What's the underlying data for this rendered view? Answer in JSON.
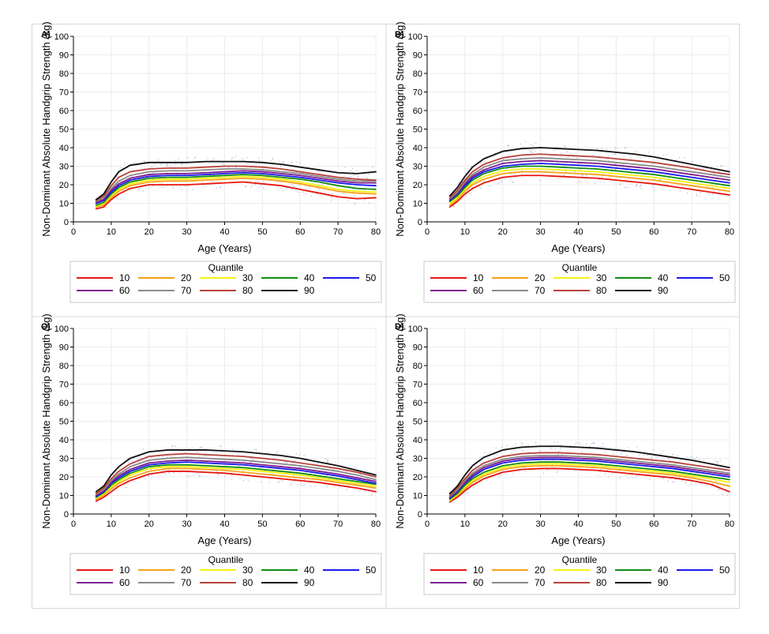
{
  "legend": {
    "title": "Quantile",
    "items": [
      {
        "label": "10",
        "color": "#e8150f"
      },
      {
        "label": "20",
        "color": "#f7a21b"
      },
      {
        "label": "30",
        "color": "#f3f20f"
      },
      {
        "label": "40",
        "color": "#118c11"
      },
      {
        "label": "50",
        "color": "#1a1aee"
      },
      {
        "label": "60",
        "color": "#7f1a8f"
      },
      {
        "label": "70",
        "color": "#8a8a8a"
      },
      {
        "label": "80",
        "color": "#b8433a"
      },
      {
        "label": "90",
        "color": "#111111"
      }
    ]
  },
  "chart_data": [
    {
      "panel": "A)",
      "type": "line",
      "xlabel": "Age (Years)",
      "ylabel": "Non-Dominant Absolute Handgrip Strength (kg)",
      "xlim": [
        0,
        80
      ],
      "ylim": [
        0,
        100
      ],
      "xticks": [
        0,
        10,
        20,
        30,
        40,
        50,
        60,
        70,
        80
      ],
      "yticks": [
        0,
        10,
        20,
        30,
        40,
        50,
        60,
        70,
        80,
        90,
        100
      ],
      "grid": true,
      "x": [
        6,
        8,
        10,
        12,
        15,
        20,
        25,
        30,
        35,
        40,
        45,
        50,
        55,
        60,
        65,
        70,
        75,
        80
      ],
      "series": [
        {
          "name": "10",
          "values": [
            7,
            8,
            12,
            15,
            18,
            20,
            20,
            20,
            20.5,
            21,
            21.5,
            20.5,
            19.5,
            17.5,
            15.5,
            13.5,
            12.5,
            13
          ]
        },
        {
          "name": "20",
          "values": [
            8,
            9,
            13,
            16.5,
            19.5,
            21.5,
            22,
            22,
            22.5,
            23,
            23.5,
            23,
            22,
            20.5,
            18.5,
            16.5,
            15.5,
            15
          ]
        },
        {
          "name": "30",
          "values": [
            8.5,
            10,
            14,
            17.5,
            20.5,
            22.5,
            23,
            23,
            23.5,
            24,
            24.5,
            24,
            23,
            21.5,
            19.5,
            17.5,
            16.5,
            16
          ]
        },
        {
          "name": "40",
          "values": [
            9,
            10.5,
            15,
            18.5,
            21.5,
            23.5,
            24,
            24,
            24.5,
            25,
            25.5,
            25,
            24,
            23,
            21.5,
            19.5,
            18,
            17.5
          ]
        },
        {
          "name": "50",
          "values": [
            10,
            11.5,
            16,
            19.5,
            22.5,
            24.5,
            25,
            25,
            25.5,
            26,
            26.5,
            26,
            25,
            24,
            22.5,
            21,
            20,
            19.5
          ]
        },
        {
          "name": "60",
          "values": [
            10.5,
            12,
            17,
            20.5,
            23.5,
            25.5,
            26,
            26,
            26.5,
            27,
            27.5,
            27,
            26,
            25,
            23.5,
            22,
            21,
            21
          ]
        },
        {
          "name": "70",
          "values": [
            11,
            13,
            18,
            22,
            25,
            27,
            27.5,
            27.5,
            28,
            28.5,
            28.5,
            28,
            27,
            26,
            24.5,
            23,
            22,
            22
          ]
        },
        {
          "name": "80",
          "values": [
            11.5,
            14,
            19.5,
            24,
            27,
            28.5,
            29,
            29,
            29.5,
            30,
            30,
            29.5,
            28.5,
            27,
            25.5,
            24,
            23,
            22.5
          ]
        },
        {
          "name": "90",
          "values": [
            12,
            15,
            21.5,
            27,
            30.5,
            32,
            32,
            32,
            32.5,
            32.5,
            32.5,
            32,
            31,
            29.5,
            28,
            26.5,
            26,
            27
          ]
        }
      ]
    },
    {
      "panel": "B)",
      "type": "line",
      "xlabel": "Age (Years)",
      "ylabel": "Non-Dominant Absolute Handgrip Strength (kg)",
      "xlim": [
        0,
        80
      ],
      "ylim": [
        0,
        100
      ],
      "xticks": [
        0,
        10,
        20,
        30,
        40,
        50,
        60,
        70,
        80
      ],
      "yticks": [
        0,
        10,
        20,
        30,
        40,
        50,
        60,
        70,
        80,
        90,
        100
      ],
      "grid": true,
      "x": [
        6,
        8,
        10,
        12,
        15,
        20,
        25,
        30,
        35,
        40,
        45,
        50,
        55,
        60,
        65,
        70,
        75,
        80
      ],
      "series": [
        {
          "name": "10",
          "values": [
            8,
            11,
            15,
            18,
            21,
            24,
            25,
            25,
            24.5,
            24,
            23.5,
            22.5,
            21.5,
            20.5,
            19,
            17.5,
            16,
            14.5
          ]
        },
        {
          "name": "20",
          "values": [
            9,
            12,
            16.5,
            20,
            23,
            26,
            27,
            27,
            26.5,
            26,
            25.5,
            24.5,
            23.5,
            22.5,
            21,
            19.5,
            18,
            16.5
          ]
        },
        {
          "name": "30",
          "values": [
            10,
            13,
            17.5,
            21,
            24.5,
            27.5,
            28.5,
            28.5,
            28,
            27.5,
            27,
            26,
            25,
            24,
            22.5,
            21,
            19.5,
            18
          ]
        },
        {
          "name": "40",
          "values": [
            11,
            14,
            18.5,
            22.5,
            26,
            29,
            30,
            30,
            29.5,
            29,
            28.5,
            27.5,
            26.5,
            25.5,
            24,
            22.5,
            21,
            19.5
          ]
        },
        {
          "name": "50",
          "values": [
            11.5,
            15,
            19.5,
            23.5,
            27,
            30,
            31,
            31.5,
            31,
            30.5,
            30,
            29,
            28,
            27,
            25.5,
            24,
            22.5,
            21
          ]
        },
        {
          "name": "60",
          "values": [
            12,
            15.5,
            20.5,
            24.5,
            28,
            31.5,
            32.5,
            33,
            32.5,
            32,
            31.5,
            30.5,
            29.5,
            28.5,
            27,
            25.5,
            24,
            22.5
          ]
        },
        {
          "name": "70",
          "values": [
            12.5,
            16,
            21.5,
            25.5,
            29.5,
            33,
            34,
            34.5,
            34,
            33.5,
            33,
            32,
            31,
            30,
            28.5,
            27,
            25.5,
            24
          ]
        },
        {
          "name": "80",
          "values": [
            13,
            17,
            22.5,
            27,
            31,
            34.5,
            36,
            36.5,
            36,
            35.5,
            35,
            34,
            33,
            32,
            30.5,
            29,
            27,
            25.5
          ]
        },
        {
          "name": "90",
          "values": [
            14,
            18.5,
            24.5,
            29.5,
            34,
            38,
            39.5,
            40,
            39.5,
            39,
            38.5,
            37.5,
            36.5,
            35,
            33,
            31,
            29,
            27
          ]
        }
      ]
    },
    {
      "panel": "C)",
      "type": "line",
      "xlabel": "Age (Years)",
      "ylabel": "Non-Dominant Absolute Handgrip Strength (kg)",
      "xlim": [
        0,
        80
      ],
      "ylim": [
        0,
        100
      ],
      "xticks": [
        0,
        10,
        20,
        30,
        40,
        50,
        60,
        70,
        80
      ],
      "yticks": [
        0,
        10,
        20,
        30,
        40,
        50,
        60,
        70,
        80,
        90,
        100
      ],
      "grid": true,
      "x": [
        6,
        8,
        10,
        12,
        15,
        20,
        25,
        30,
        35,
        40,
        45,
        50,
        55,
        60,
        65,
        70,
        75,
        80
      ],
      "series": [
        {
          "name": "10",
          "values": [
            7,
            9,
            12,
            15,
            18,
            21.5,
            23,
            23,
            22.5,
            22,
            21,
            20,
            19,
            18,
            17,
            15.5,
            14,
            12
          ]
        },
        {
          "name": "20",
          "values": [
            8,
            10,
            13.5,
            16.5,
            19.5,
            23,
            24.5,
            24.5,
            24,
            23.5,
            22.5,
            21.5,
            20.5,
            19.5,
            18.5,
            17,
            15.5,
            14
          ]
        },
        {
          "name": "30",
          "values": [
            8.5,
            11,
            14.5,
            17.5,
            21,
            24.5,
            25.5,
            25.5,
            25,
            24.5,
            24,
            23,
            22,
            21,
            19.5,
            18,
            16.5,
            15
          ]
        },
        {
          "name": "40",
          "values": [
            9,
            11.5,
            15.5,
            18.5,
            22,
            25.5,
            26.5,
            26.5,
            26,
            25.5,
            25,
            24,
            23,
            22,
            20.5,
            19,
            17.5,
            16
          ]
        },
        {
          "name": "50",
          "values": [
            9.5,
            12,
            16.5,
            19.5,
            23,
            26.5,
            27.5,
            28,
            27.5,
            27,
            26.5,
            25.5,
            24.5,
            23.5,
            22,
            20.5,
            18.5,
            16.5
          ]
        },
        {
          "name": "60",
          "values": [
            10,
            12.5,
            17,
            20.5,
            24,
            27.5,
            28.5,
            29,
            28.5,
            28,
            27.5,
            26.5,
            25.5,
            24.5,
            23,
            21.5,
            19.5,
            17.5
          ]
        },
        {
          "name": "70",
          "values": [
            10.5,
            13,
            18,
            21.5,
            25.5,
            29,
            30,
            30.5,
            30,
            29.5,
            29,
            28,
            27,
            26,
            24.5,
            23,
            21,
            18.5
          ]
        },
        {
          "name": "80",
          "values": [
            11,
            14,
            19,
            23,
            27,
            31,
            32,
            32.5,
            32,
            31.5,
            31,
            30,
            29,
            27.5,
            26,
            24.5,
            22.5,
            20
          ]
        },
        {
          "name": "90",
          "values": [
            12,
            15,
            21,
            25.5,
            30,
            33.5,
            34.5,
            34.5,
            34.5,
            34,
            33.5,
            32.5,
            31.5,
            30,
            28,
            26,
            23.5,
            21
          ]
        }
      ]
    },
    {
      "panel": "D)",
      "type": "line",
      "xlabel": "Age (Years)",
      "ylabel": "Non-Dominant Absolute Handgrip Strength (kg)",
      "xlim": [
        0,
        80
      ],
      "ylim": [
        0,
        100
      ],
      "xticks": [
        0,
        10,
        20,
        30,
        40,
        50,
        60,
        70,
        80
      ],
      "yticks": [
        0,
        10,
        20,
        30,
        40,
        50,
        60,
        70,
        80,
        90,
        100
      ],
      "grid": true,
      "x": [
        6,
        8,
        10,
        12,
        15,
        20,
        25,
        30,
        35,
        40,
        45,
        50,
        55,
        60,
        65,
        70,
        75,
        80
      ],
      "series": [
        {
          "name": "10",
          "values": [
            6.5,
            9,
            12.5,
            15.5,
            19,
            22.5,
            24,
            24.5,
            24.5,
            24,
            23.5,
            22.5,
            21.5,
            20.5,
            19.5,
            18,
            16,
            12
          ]
        },
        {
          "name": "20",
          "values": [
            7,
            10,
            13.5,
            17,
            20.5,
            24,
            25.5,
            26,
            26,
            25.5,
            25,
            24,
            23,
            22,
            21,
            19.5,
            17.5,
            15
          ]
        },
        {
          "name": "30",
          "values": [
            7.5,
            10.5,
            14.5,
            18,
            21.5,
            25,
            26.5,
            27,
            27,
            26.5,
            26,
            25,
            24,
            23,
            22,
            20.5,
            19,
            17
          ]
        },
        {
          "name": "40",
          "values": [
            8,
            11,
            15.5,
            19,
            22.5,
            26,
            27.5,
            28,
            28,
            27.5,
            27,
            26,
            25,
            24,
            23,
            21.5,
            20,
            18.5
          ]
        },
        {
          "name": "50",
          "values": [
            8.5,
            12,
            16.5,
            20,
            24,
            27.5,
            29,
            29.5,
            29.5,
            29,
            28.5,
            27.5,
            26.5,
            25.5,
            24.5,
            23,
            21.5,
            20
          ]
        },
        {
          "name": "60",
          "values": [
            9,
            12.5,
            17,
            21,
            25,
            28.5,
            30,
            30.5,
            30.5,
            30,
            29.5,
            28.5,
            27.5,
            26.5,
            25.5,
            24,
            22.5,
            21
          ]
        },
        {
          "name": "70",
          "values": [
            9.5,
            13,
            18,
            22,
            26,
            29.5,
            31,
            31.5,
            31.5,
            31,
            30.5,
            29.5,
            28.5,
            27.5,
            26.5,
            25,
            23.5,
            22
          ]
        },
        {
          "name": "80",
          "values": [
            10,
            14,
            19,
            23.5,
            27.5,
            31,
            32.5,
            33,
            33,
            32.5,
            32,
            31,
            30,
            29,
            28,
            26.5,
            25,
            23.5
          ]
        },
        {
          "name": "90",
          "values": [
            11,
            15,
            21,
            26,
            30.5,
            34.5,
            36,
            36.5,
            36.5,
            36,
            35.5,
            34.5,
            33.5,
            32,
            30.5,
            29,
            27,
            25
          ]
        }
      ]
    }
  ]
}
